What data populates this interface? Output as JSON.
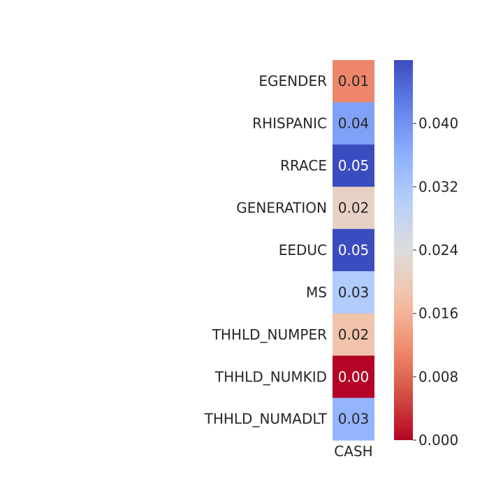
{
  "chart_data": {
    "type": "heatmap",
    "columns": [
      "CASH"
    ],
    "rows": [
      "EGENDER",
      "RHISPANIC",
      "RRACE",
      "GENERATION",
      "EEDUC",
      "MS",
      "THHLD_NUMPER",
      "THHLD_NUMKID",
      "THHLD_NUMADLT"
    ],
    "values": [
      0.011,
      0.038,
      0.048,
      0.021,
      0.048,
      0.031,
      0.018,
      0.0,
      0.035
    ],
    "annotations": [
      "0.01",
      "0.04",
      "0.05",
      "0.02",
      "0.05",
      "0.03",
      "0.02",
      "0.00",
      "0.03"
    ],
    "colormap": "coolwarm",
    "colorbar": {
      "vmin": 0.0,
      "vmax": 0.048,
      "ticks": [
        0.0,
        0.008,
        0.016,
        0.024,
        0.032,
        0.04
      ],
      "tick_labels": [
        "0.000",
        "0.008",
        "0.016",
        "0.024",
        "0.032",
        "0.040"
      ]
    },
    "colors": {
      "low": "#b40426",
      "mid": "#dddcdc",
      "high": "#3b4cc0",
      "text_dark": "#262626",
      "text_light": "#ffffff"
    }
  }
}
